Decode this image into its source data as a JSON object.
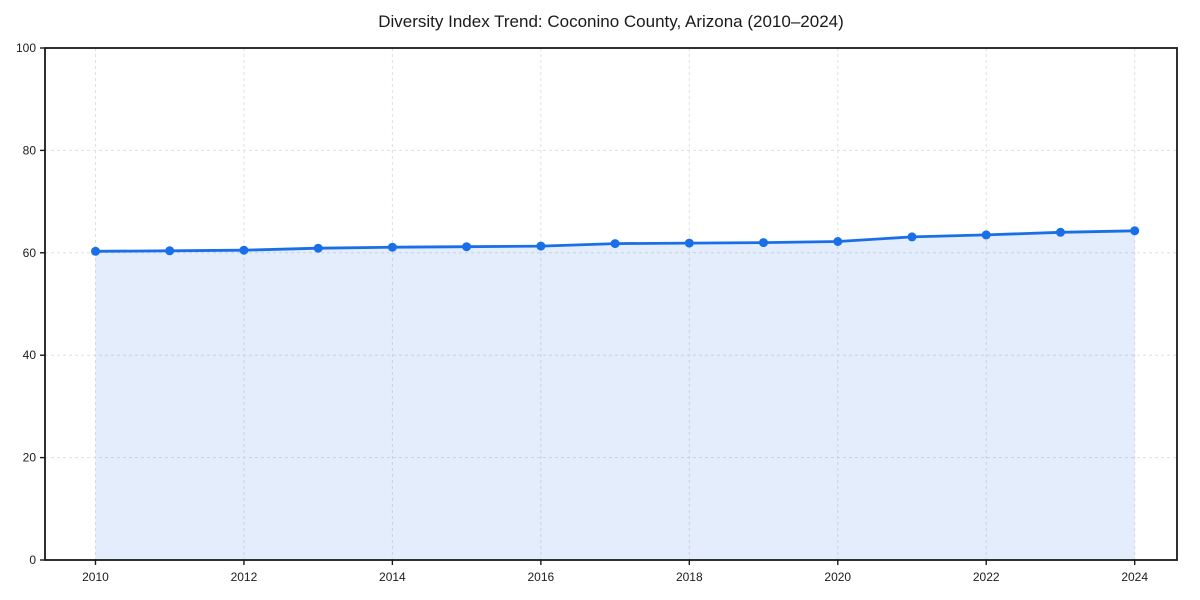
{
  "chart_data": {
    "type": "area",
    "title": "Diversity Index Trend: Coconino County, Arizona (2010–2024)",
    "series_name": "Diversity Index",
    "x": [
      2010,
      2011,
      2012,
      2013,
      2014,
      2015,
      2016,
      2017,
      2018,
      2019,
      2020,
      2021,
      2022,
      2023,
      2024
    ],
    "values": [
      60.3,
      60.4,
      60.5,
      60.9,
      61.1,
      61.2,
      61.3,
      61.8,
      61.9,
      62.0,
      62.2,
      63.1,
      63.5,
      64.0,
      64.3
    ],
    "xlabel": "",
    "ylabel": "",
    "xlim": [
      2009.32,
      2024.57
    ],
    "ylim": [
      0,
      100
    ],
    "xticks": [
      "2010",
      "2012",
      "2014",
      "2016",
      "2018",
      "2020",
      "2022",
      "2024"
    ],
    "yticks": [
      "0",
      "20",
      "40",
      "60",
      "80",
      "100"
    ],
    "grid": "dashed-both-axes",
    "legend_position": "none",
    "markers": "circle",
    "colors": {
      "line": "#1a6fe8",
      "fill": "#1a6fe8",
      "fill_opacity": "0.12",
      "grid": "#e0e0e0",
      "spine": "#1a1a1a",
      "tick_label": "#1c1c1c",
      "title": "#1a1a1a",
      "background": "#ffffff"
    }
  }
}
